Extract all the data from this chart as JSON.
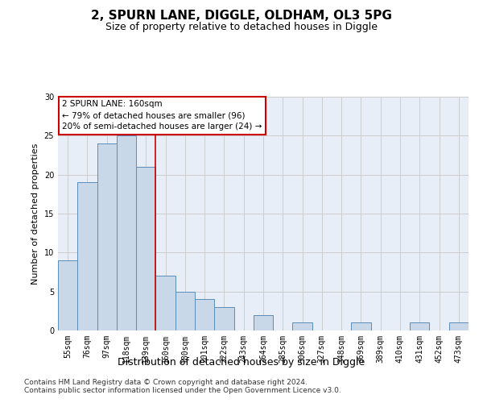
{
  "title": "2, SPURN LANE, DIGGLE, OLDHAM, OL3 5PG",
  "subtitle": "Size of property relative to detached houses in Diggle",
  "xlabel": "Distribution of detached houses by size in Diggle",
  "ylabel": "Number of detached properties",
  "categories": [
    "55sqm",
    "76sqm",
    "97sqm",
    "118sqm",
    "139sqm",
    "160sqm",
    "180sqm",
    "201sqm",
    "222sqm",
    "243sqm",
    "264sqm",
    "285sqm",
    "306sqm",
    "327sqm",
    "348sqm",
    "369sqm",
    "389sqm",
    "410sqm",
    "431sqm",
    "452sqm",
    "473sqm"
  ],
  "values": [
    9,
    19,
    24,
    25,
    21,
    7,
    5,
    4,
    3,
    0,
    2,
    0,
    1,
    0,
    0,
    1,
    0,
    0,
    1,
    0,
    1
  ],
  "bar_color": "#c8d8e8",
  "bar_edge_color": "#5b8db8",
  "highlight_index": 5,
  "highlight_line_color": "#cc0000",
  "annotation_text": "2 SPURN LANE: 160sqm\n← 79% of detached houses are smaller (96)\n20% of semi-detached houses are larger (24) →",
  "annotation_box_color": "#ffffff",
  "annotation_box_edge_color": "#cc0000",
  "ylim": [
    0,
    30
  ],
  "yticks": [
    0,
    5,
    10,
    15,
    20,
    25,
    30
  ],
  "grid_color": "#cccccc",
  "bg_color": "#e8eef8",
  "footer_line1": "Contains HM Land Registry data © Crown copyright and database right 2024.",
  "footer_line2": "Contains public sector information licensed under the Open Government Licence v3.0.",
  "title_fontsize": 11,
  "subtitle_fontsize": 9,
  "xlabel_fontsize": 9,
  "ylabel_fontsize": 8,
  "tick_fontsize": 7,
  "annotation_fontsize": 7.5,
  "footer_fontsize": 6.5
}
